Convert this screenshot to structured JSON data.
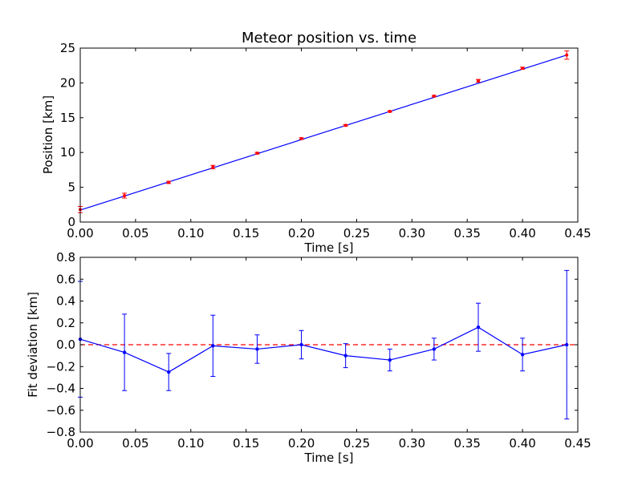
{
  "chart_data": [
    {
      "type": "scatter",
      "title": "Meteor position vs. time",
      "xlabel": "Time [s]",
      "ylabel": "Position [km]",
      "xlim": [
        0.0,
        0.45
      ],
      "ylim": [
        0,
        25
      ],
      "x_ticks": [
        "0.00",
        "0.05",
        "0.10",
        "0.15",
        "0.20",
        "0.25",
        "0.30",
        "0.35",
        "0.40",
        "0.45"
      ],
      "y_ticks": [
        "0",
        "5",
        "10",
        "15",
        "20",
        "25"
      ],
      "grid": false,
      "series": [
        {
          "kind": "errorbar-points",
          "color": "#ff0000",
          "x": [
            0.0,
            0.04,
            0.08,
            0.12,
            0.16,
            0.2,
            0.24,
            0.28,
            0.32,
            0.36,
            0.4,
            0.44
          ],
          "y": [
            1.8,
            3.8,
            5.7,
            7.9,
            9.9,
            12.0,
            13.9,
            15.9,
            18.1,
            20.3,
            22.1,
            24.0
          ],
          "yerr": [
            0.45,
            0.35,
            0.17,
            0.25,
            0.12,
            0.12,
            0.1,
            0.1,
            0.1,
            0.2,
            0.15,
            0.6
          ]
        },
        {
          "kind": "fit-line",
          "color": "#0000ff",
          "x": [
            0.0,
            0.44
          ],
          "y": [
            1.72,
            24.0
          ]
        }
      ]
    },
    {
      "type": "line",
      "title": "",
      "xlabel": "Time [s]",
      "ylabel": "Fit deviation [km]",
      "xlim": [
        0.0,
        0.45
      ],
      "ylim": [
        -0.8,
        0.8
      ],
      "x_ticks": [
        "0.00",
        "0.05",
        "0.10",
        "0.15",
        "0.20",
        "0.25",
        "0.30",
        "0.35",
        "0.40",
        "0.45"
      ],
      "y_ticks": [
        "−0.8",
        "−0.6",
        "−0.4",
        "−0.2",
        "0.0",
        "0.2",
        "0.4",
        "0.6",
        "0.8"
      ],
      "grid": false,
      "reference_line": {
        "y": 0.0,
        "color": "#ff0000",
        "style": "dashed"
      },
      "series": [
        {
          "color": "#0000ff",
          "x": [
            0.0,
            0.04,
            0.08,
            0.12,
            0.16,
            0.2,
            0.24,
            0.28,
            0.32,
            0.36,
            0.4,
            0.44
          ],
          "y": [
            0.05,
            -0.07,
            -0.25,
            -0.01,
            -0.04,
            0.0,
            -0.1,
            -0.14,
            -0.04,
            0.16,
            -0.09,
            0.0
          ],
          "yerr": [
            0.53,
            0.35,
            0.17,
            0.28,
            0.13,
            0.13,
            0.11,
            0.1,
            0.1,
            0.22,
            0.15,
            0.68
          ]
        }
      ]
    }
  ]
}
